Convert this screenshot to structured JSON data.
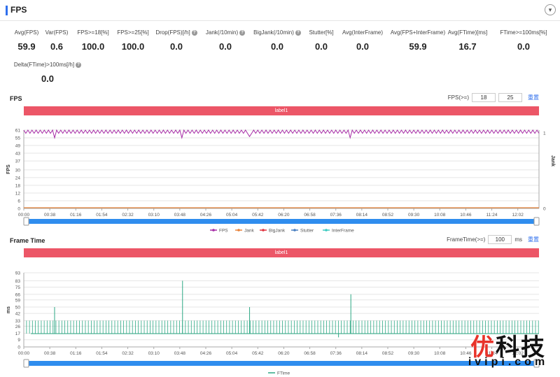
{
  "header": {
    "title": "FPS"
  },
  "metrics": [
    {
      "label": "Avg(FPS)",
      "value": "59.9",
      "help": false
    },
    {
      "label": "Var(FPS)",
      "value": "0.6",
      "help": false
    },
    {
      "label": "FPS>=18[%]",
      "value": "100.0",
      "help": false
    },
    {
      "label": "FPS>=25[%]",
      "value": "100.0",
      "help": false
    },
    {
      "label": "Drop(FPS)[/h]",
      "value": "0.0",
      "help": true
    },
    {
      "label": "Jank(/10min)",
      "value": "0.0",
      "help": true
    },
    {
      "label": "BigJank(/10min)",
      "value": "0.0",
      "help": true
    },
    {
      "label": "Stutter[%]",
      "value": "0.0",
      "help": false
    },
    {
      "label": "Avg(InterFrame)",
      "value": "0.0",
      "help": false
    },
    {
      "label": "Avg(FPS+InterFrame)",
      "value": "59.9",
      "help": false
    },
    {
      "label": "Avg(FTime)[ms]",
      "value": "16.7",
      "help": false
    },
    {
      "label": "FTime>=100ms[%]",
      "value": "0.0",
      "help": false
    },
    {
      "label": "Delta(FTime)>100ms[/h]",
      "value": "0.0",
      "help": true
    }
  ],
  "fps_section": {
    "title": "FPS",
    "threshold_label": "FPS(>=)",
    "threshold_1": "18",
    "threshold_2": "25",
    "reset": "重置",
    "label_bar": "label1"
  },
  "ft_section": {
    "title": "Frame Time",
    "threshold_label": "FrameTime(>=)",
    "threshold": "100",
    "unit": "ms",
    "reset": "重置",
    "label_bar": "label1"
  },
  "watermark": {
    "brand_red": "优",
    "brand_rest": "科技",
    "domain": "ivipi.com"
  },
  "colors": {
    "fps": "#a62ca6",
    "jank": "#e8833a",
    "bigjank": "#e0333f",
    "stutter": "#4a7fc1",
    "interframe": "#3ccbc1",
    "ftime": "#2da884",
    "labelbar": "#ec5667",
    "slider": "#1e90ff"
  },
  "chart_data": [
    {
      "type": "line",
      "title": "FPS",
      "ylabel": "FPS",
      "ylabel_right": "Jank",
      "ylim": [
        0,
        61
      ],
      "yticks": [
        0,
        6,
        12,
        18,
        24,
        30,
        37,
        43,
        49,
        55,
        61
      ],
      "y_right_ticks": [
        0,
        1
      ],
      "xticks": [
        "00:00",
        "00:38",
        "01:16",
        "01:54",
        "02:32",
        "03:10",
        "03:48",
        "04:26",
        "05:04",
        "05:42",
        "06:20",
        "06:58",
        "07:36",
        "08:14",
        "08:52",
        "09:30",
        "10:08",
        "10:46",
        "11:24",
        "12:02"
      ],
      "legend": [
        "FPS",
        "Jank",
        "BigJank",
        "Stutter",
        "InterFrame"
      ],
      "legend_position": "bottom",
      "series": [
        {
          "name": "FPS",
          "pattern": "oscillates between 58 and 61",
          "dips": [
            {
              "t": "00:45",
              "value": 55
            },
            {
              "t": "03:52",
              "value": 55
            },
            {
              "t": "05:30",
              "value": 56
            },
            {
              "t": "07:58",
              "value": 55
            }
          ]
        },
        {
          "name": "Jank",
          "value": 0
        },
        {
          "name": "BigJank",
          "value": 0
        },
        {
          "name": "Stutter",
          "value": 0
        },
        {
          "name": "InterFrame",
          "value": 0
        }
      ]
    },
    {
      "type": "bar",
      "title": "Frame Time",
      "ylabel": "ms",
      "ylim": [
        0,
        93
      ],
      "yticks": [
        0,
        9,
        17,
        26,
        33,
        42,
        50,
        59,
        66,
        75,
        83,
        93
      ],
      "xticks": [
        "00:00",
        "00:38",
        "01:16",
        "01:54",
        "02:32",
        "03:10",
        "03:48",
        "04:26",
        "05:04",
        "05:42",
        "06:20",
        "06:58",
        "07:36",
        "08:14",
        "08:52",
        "09:30",
        "10:08",
        "10:46",
        "11:24",
        "12:02"
      ],
      "legend": [
        "FTime"
      ],
      "legend_position": "bottom",
      "series": [
        {
          "name": "FTime",
          "baseline": 16.7,
          "regular_spikes": 33,
          "outliers": [
            {
              "t": "00:45",
              "value": 50
            },
            {
              "t": "03:52",
              "value": 83
            },
            {
              "t": "05:30",
              "value": 50
            },
            {
              "t": "07:40",
              "value": 12
            },
            {
              "t": "07:58",
              "value": 66
            }
          ]
        }
      ]
    }
  ]
}
